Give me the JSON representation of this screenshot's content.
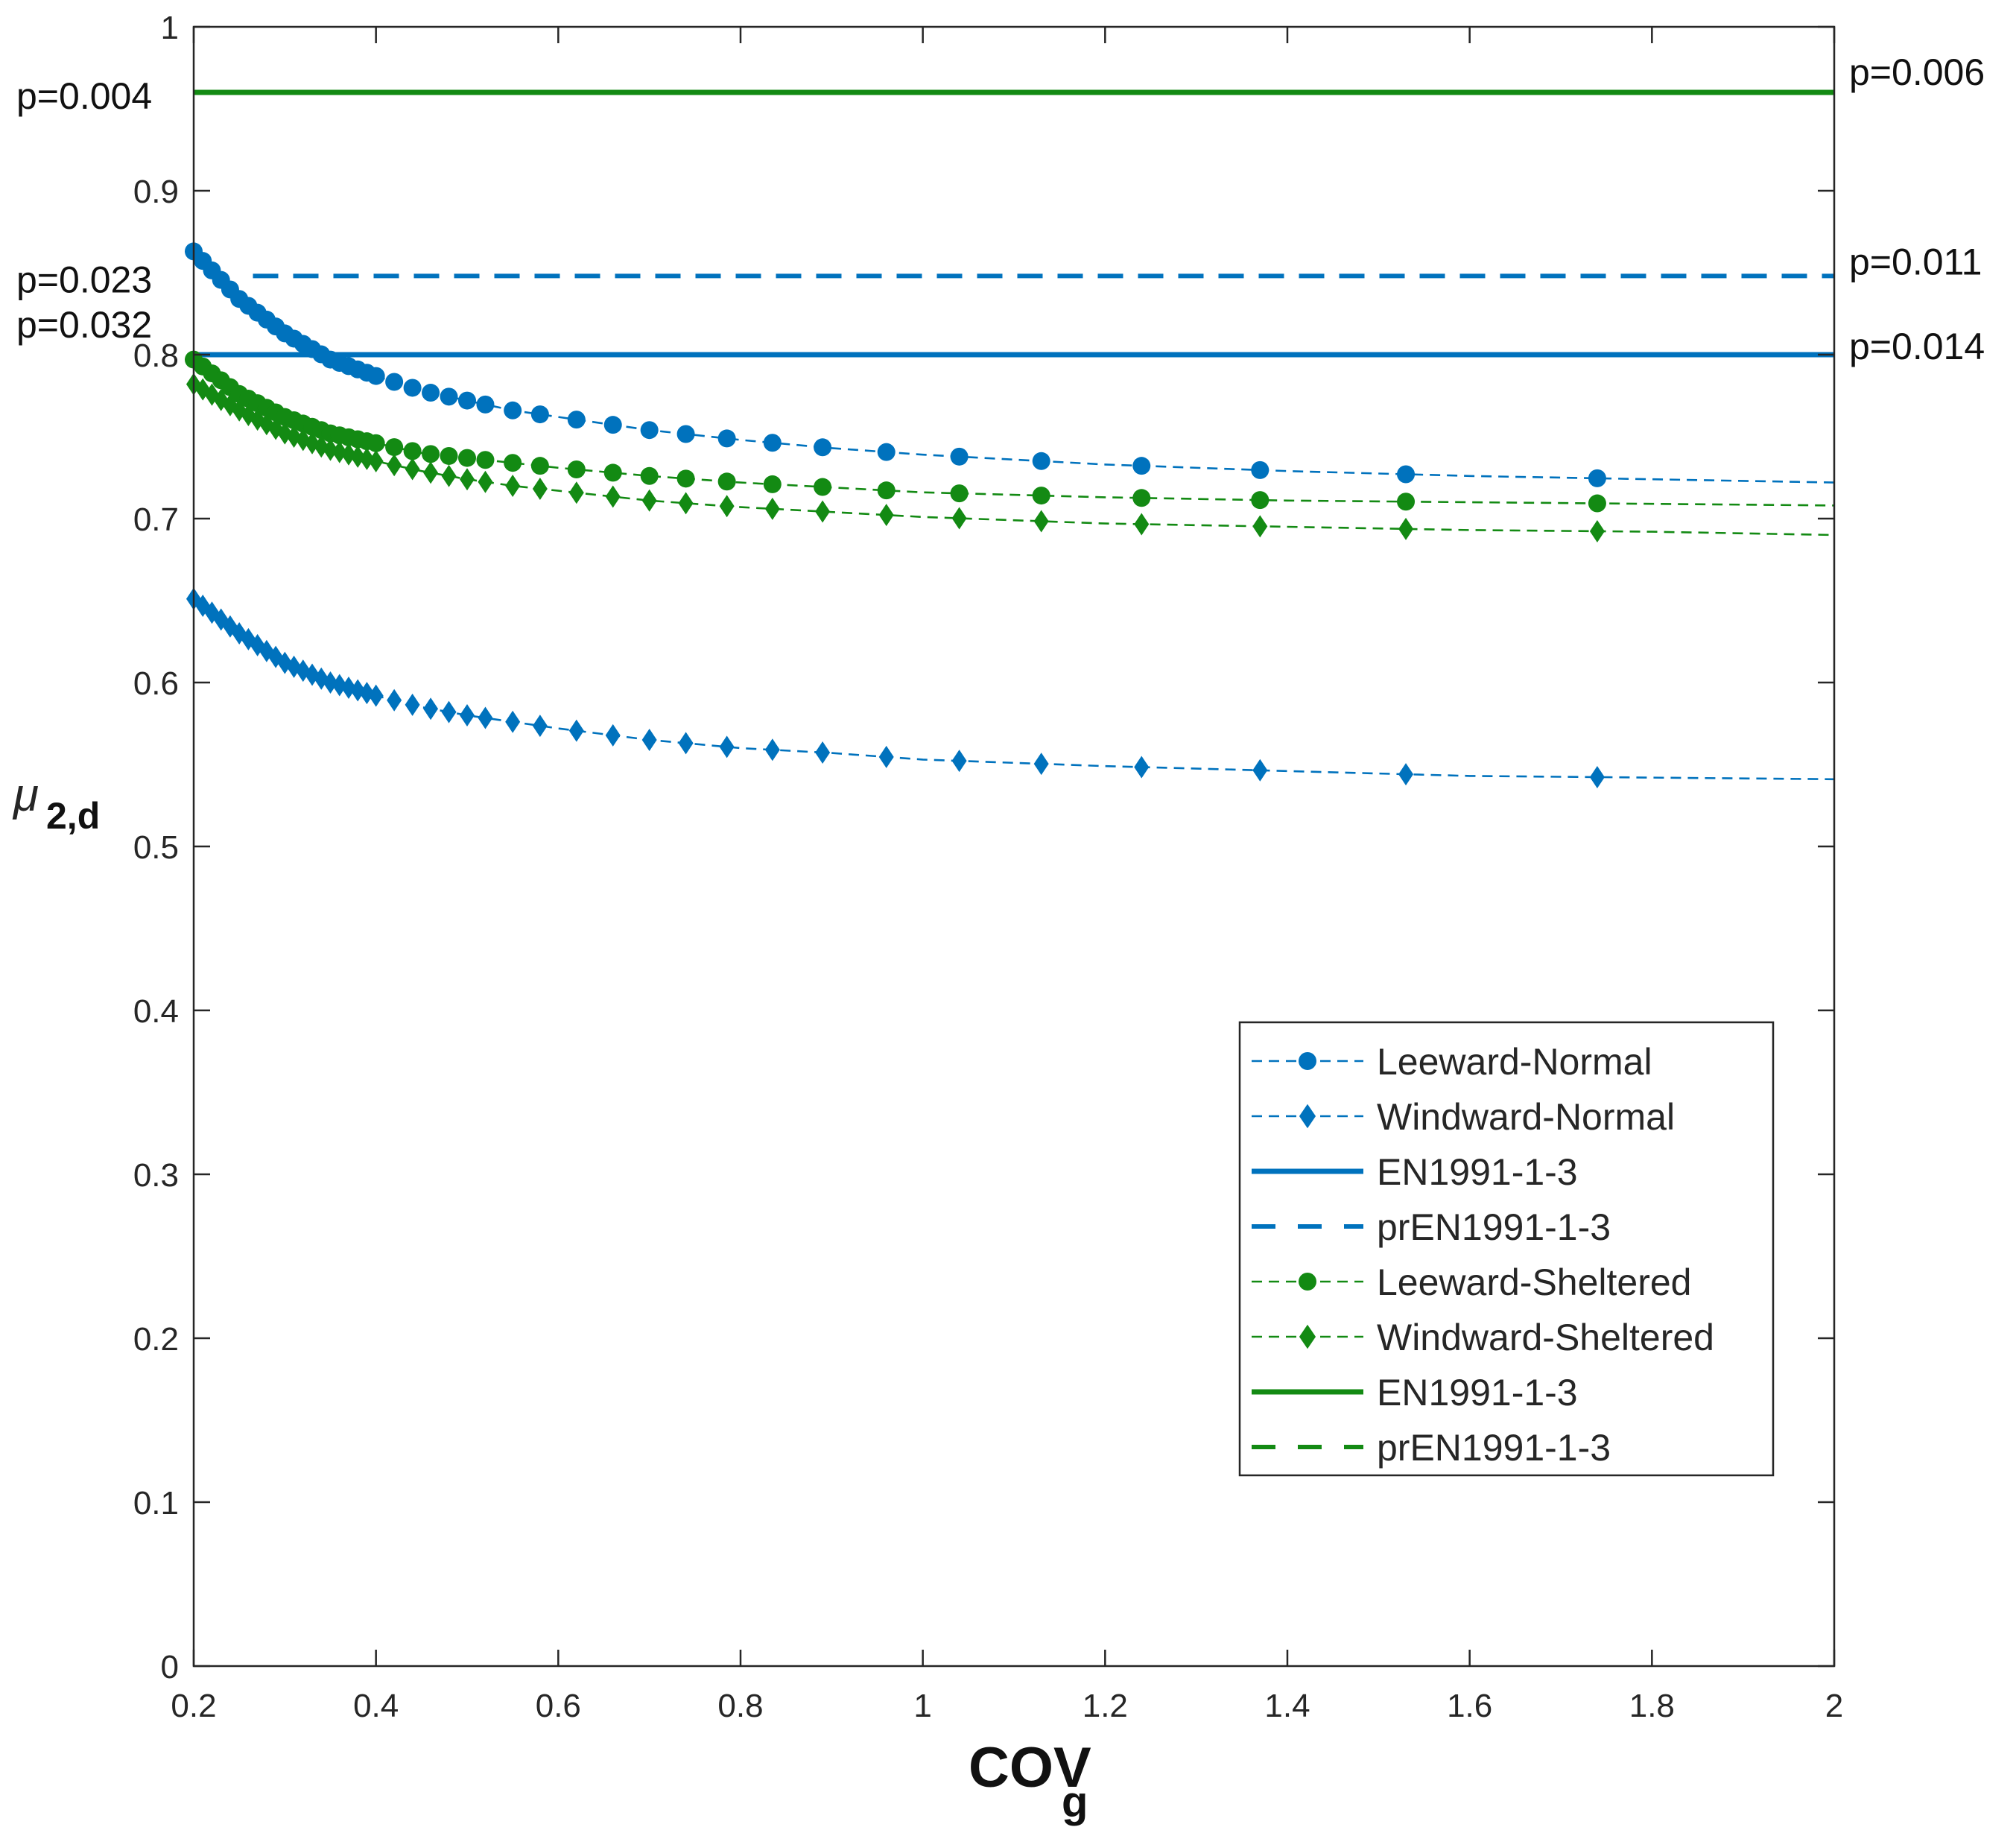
{
  "chart_data": {
    "type": "line",
    "title": "",
    "xlabel": "COV",
    "xlabel_sub": "g",
    "ylabel": "μ",
    "ylabel_sub": "2,d",
    "xlim": [
      0.2,
      2
    ],
    "ylim": [
      0,
      1
    ],
    "xticks": [
      "0.2",
      "0.4",
      "0.6",
      "0.8",
      "1",
      "1.2",
      "1.4",
      "1.6",
      "1.8",
      "2"
    ],
    "yticks": [
      "0",
      "0.1",
      "0.2",
      "0.3",
      "0.4",
      "0.5",
      "0.6",
      "0.7",
      "0.8",
      "0.9",
      "1"
    ],
    "grid": false,
    "legend_position": "bottom-right",
    "colors": {
      "blue": "#0072bd",
      "green": "#138a13",
      "axis": "#262626"
    },
    "series": [
      {
        "name": "Leeward-Normal",
        "color": "blue",
        "style": "dashed-thin",
        "marker": "circle",
        "x": [
          0.2,
          0.25,
          0.3,
          0.35,
          0.4,
          0.45,
          0.5,
          0.55,
          0.6,
          0.7,
          0.8,
          0.9,
          1.0,
          1.2,
          1.4,
          1.6,
          1.8,
          2.0
        ],
        "y": [
          0.863,
          0.834,
          0.813,
          0.797,
          0.787,
          0.778,
          0.772,
          0.766,
          0.762,
          0.754,
          0.748,
          0.743,
          0.739,
          0.733,
          0.729,
          0.726,
          0.724,
          0.722
        ],
        "marker_x": [
          0.2,
          0.21,
          0.22,
          0.23,
          0.24,
          0.25,
          0.26,
          0.27,
          0.28,
          0.29,
          0.3,
          0.31,
          0.32,
          0.33,
          0.34,
          0.35,
          0.36,
          0.37,
          0.38,
          0.39,
          0.4,
          0.42,
          0.44,
          0.46,
          0.48,
          0.5,
          0.52,
          0.55,
          0.58,
          0.62,
          0.66,
          0.7,
          0.74,
          0.785,
          0.835,
          0.89,
          0.96,
          1.04,
          1.13,
          1.24,
          1.37,
          1.53,
          1.74
        ]
      },
      {
        "name": "Windward-Normal",
        "color": "blue",
        "style": "dashed-thin",
        "marker": "diamond",
        "x": [
          0.2,
          0.25,
          0.3,
          0.35,
          0.4,
          0.45,
          0.5,
          0.55,
          0.6,
          0.7,
          0.8,
          0.9,
          1.0,
          1.2,
          1.4,
          1.6,
          1.8,
          2.0
        ],
        "y": [
          0.651,
          0.63,
          0.612,
          0.6,
          0.592,
          0.585,
          0.58,
          0.576,
          0.572,
          0.565,
          0.56,
          0.557,
          0.553,
          0.549,
          0.546,
          0.543,
          0.542,
          0.541
        ],
        "marker_x": [
          0.2,
          0.21,
          0.22,
          0.23,
          0.24,
          0.25,
          0.26,
          0.27,
          0.28,
          0.29,
          0.3,
          0.31,
          0.32,
          0.33,
          0.34,
          0.35,
          0.36,
          0.37,
          0.38,
          0.39,
          0.4,
          0.42,
          0.44,
          0.46,
          0.48,
          0.5,
          0.52,
          0.55,
          0.58,
          0.62,
          0.66,
          0.7,
          0.74,
          0.785,
          0.835,
          0.89,
          0.96,
          1.04,
          1.13,
          1.24,
          1.37,
          1.53,
          1.74
        ]
      },
      {
        "name": "EN1991-1-3",
        "color": "blue",
        "style": "solid",
        "x": [
          0.2,
          2.0
        ],
        "y": [
          0.8,
          0.8
        ]
      },
      {
        "name": "prEN1991-1-3",
        "color": "blue",
        "style": "dashed",
        "x": [
          0.265,
          2.0
        ],
        "y": [
          0.848,
          0.848
        ]
      },
      {
        "name": "Leeward-Sheltered",
        "color": "green",
        "style": "dashed-thin",
        "marker": "circle",
        "x": [
          0.2,
          0.25,
          0.3,
          0.35,
          0.4,
          0.45,
          0.5,
          0.55,
          0.6,
          0.7,
          0.8,
          0.9,
          1.0,
          1.2,
          1.4,
          1.6,
          1.8,
          2.0
        ],
        "y": [
          0.797,
          0.776,
          0.762,
          0.752,
          0.746,
          0.74,
          0.737,
          0.734,
          0.731,
          0.726,
          0.722,
          0.719,
          0.716,
          0.713,
          0.711,
          0.71,
          0.709,
          0.708
        ],
        "marker_x": [
          0.2,
          0.21,
          0.22,
          0.23,
          0.24,
          0.25,
          0.26,
          0.27,
          0.28,
          0.29,
          0.3,
          0.31,
          0.32,
          0.33,
          0.34,
          0.35,
          0.36,
          0.37,
          0.38,
          0.39,
          0.4,
          0.42,
          0.44,
          0.46,
          0.48,
          0.5,
          0.52,
          0.55,
          0.58,
          0.62,
          0.66,
          0.7,
          0.74,
          0.785,
          0.835,
          0.89,
          0.96,
          1.04,
          1.13,
          1.24,
          1.37,
          1.53,
          1.74
        ]
      },
      {
        "name": "Windward-Sheltered",
        "color": "green",
        "style": "dashed-thin",
        "marker": "diamond",
        "x": [
          0.2,
          0.25,
          0.3,
          0.35,
          0.4,
          0.45,
          0.5,
          0.55,
          0.6,
          0.7,
          0.8,
          0.9,
          1.0,
          1.2,
          1.4,
          1.6,
          1.8,
          2.0
        ],
        "y": [
          0.782,
          0.766,
          0.752,
          0.742,
          0.735,
          0.729,
          0.724,
          0.72,
          0.717,
          0.711,
          0.707,
          0.704,
          0.701,
          0.697,
          0.695,
          0.693,
          0.692,
          0.69
        ],
        "marker_x": [
          0.2,
          0.21,
          0.22,
          0.23,
          0.24,
          0.25,
          0.26,
          0.27,
          0.28,
          0.29,
          0.3,
          0.31,
          0.32,
          0.33,
          0.34,
          0.35,
          0.36,
          0.37,
          0.38,
          0.39,
          0.4,
          0.42,
          0.44,
          0.46,
          0.48,
          0.5,
          0.52,
          0.55,
          0.58,
          0.62,
          0.66,
          0.7,
          0.74,
          0.785,
          0.835,
          0.89,
          0.96,
          1.04,
          1.13,
          1.24,
          1.37,
          1.53,
          1.74
        ]
      },
      {
        "name": "EN1991-1-3",
        "color": "green",
        "style": "solid",
        "x": [
          0.2,
          2.0
        ],
        "y": [
          0.96,
          0.96
        ]
      },
      {
        "name": "prEN1991-1-3",
        "color": "green",
        "style": "dashed",
        "x": [],
        "y": []
      }
    ],
    "annotations": [
      {
        "text": "p=0.004",
        "side": "left",
        "y": 0.96
      },
      {
        "text": "p=0.023",
        "side": "left",
        "y": 0.848
      },
      {
        "text": "p=0.032",
        "side": "left",
        "y": 0.815
      },
      {
        "text": "p=0.006",
        "side": "right",
        "y": 0.96
      },
      {
        "text": "p=0.011",
        "side": "right",
        "y": 0.848
      },
      {
        "text": "p=0.014",
        "side": "right",
        "y": 0.8
      }
    ]
  }
}
